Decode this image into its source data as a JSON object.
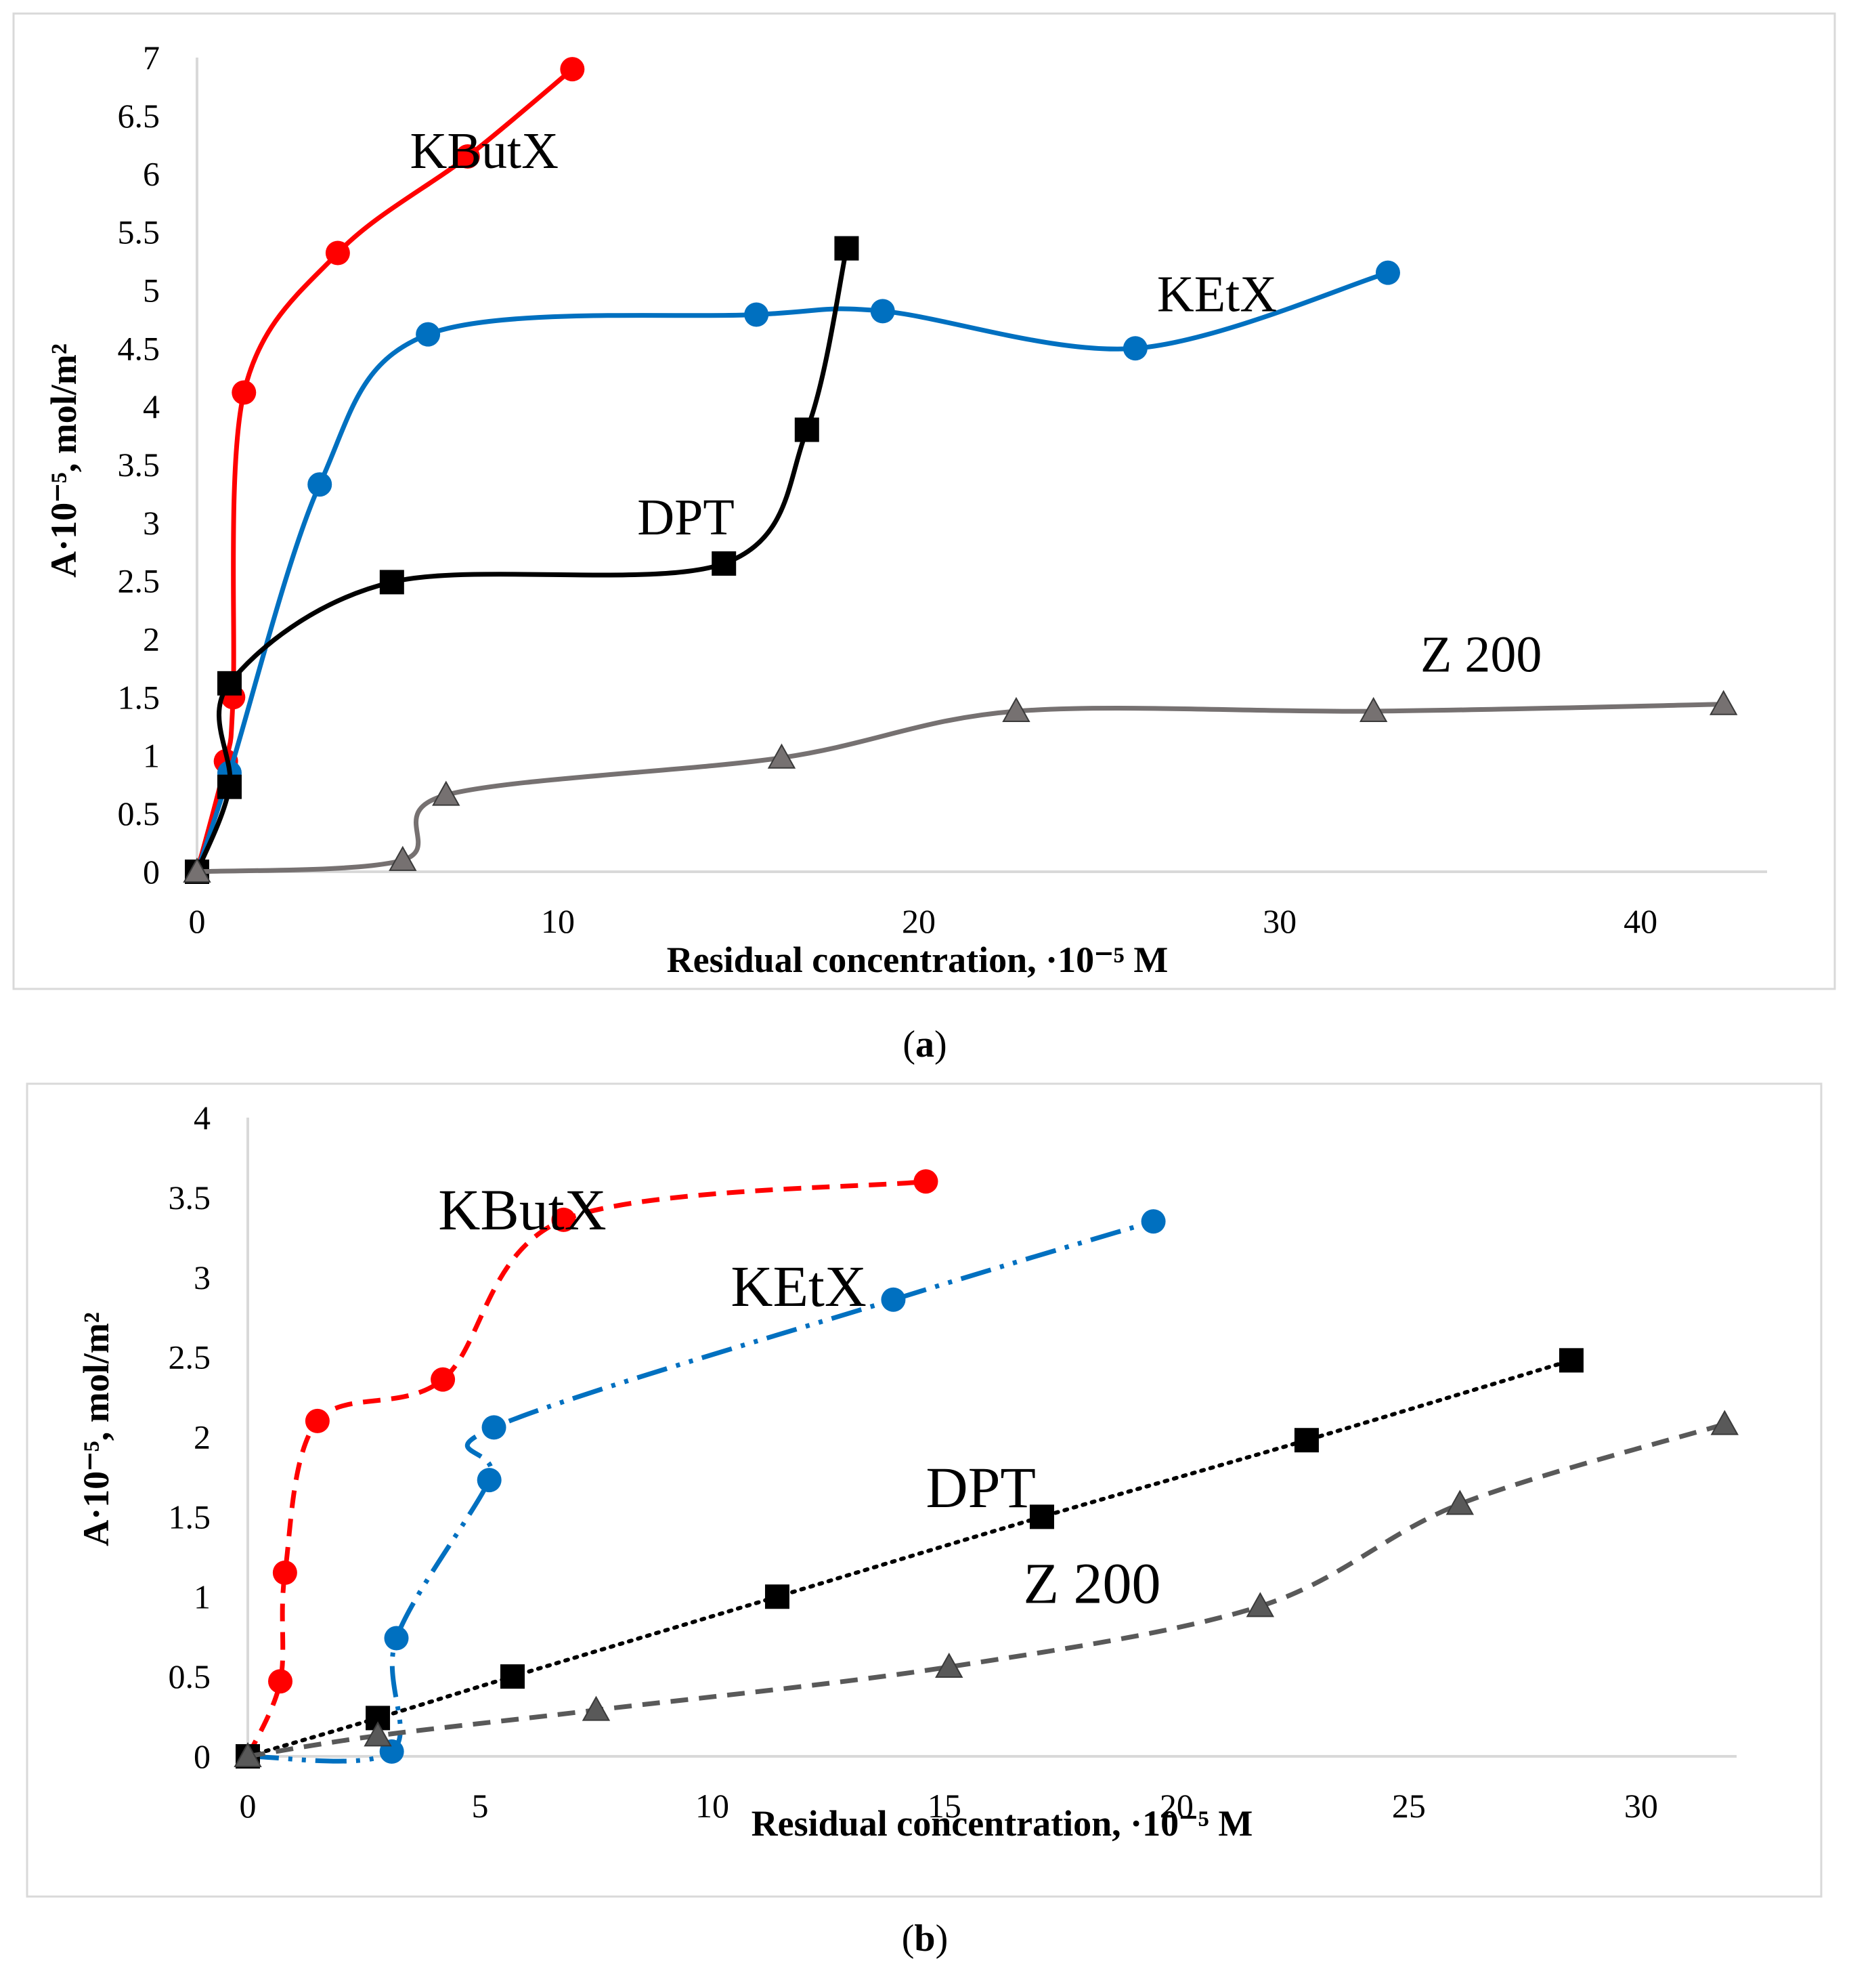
{
  "chart_data": [
    {
      "type": "line",
      "panel_label": "(a)",
      "caption_open": "(",
      "caption_letter": "a",
      "caption_close": ")",
      "xlabel": "Residual concentration, ·10⁻⁵ M",
      "ylabel": "A·10⁻⁵, mol/m²",
      "xlim": [
        0,
        43
      ],
      "ylim": [
        0,
        7
      ],
      "x_ticks": [
        "0",
        "10",
        "20",
        "30",
        "40"
      ],
      "x_tick_values": [
        0,
        10,
        20,
        30,
        40
      ],
      "y_ticks": [
        "0",
        "0.5",
        "1",
        "1.5",
        "2",
        "2.5",
        "3",
        "3.5",
        "4",
        "4.5",
        "5",
        "5.5",
        "6",
        "6.5",
        "7"
      ],
      "y_tick_values": [
        0,
        0.5,
        1,
        1.5,
        2,
        2.5,
        3,
        3.5,
        4,
        4.5,
        5,
        5.5,
        6,
        6.5,
        7
      ],
      "series": [
        {
          "name": "KButX",
          "color": "#ff0000",
          "marker": "circle",
          "line": "solid",
          "x": [
            0,
            0.8,
            1.0,
            1.3,
            3.9,
            7.5,
            10.4
          ],
          "y": [
            0,
            0.95,
            1.5,
            4.12,
            5.32,
            6.15,
            6.9
          ],
          "label_pos": [
            5.9,
            6.05
          ]
        },
        {
          "name": "KEtX",
          "color": "#0070c0",
          "marker": "circle",
          "line": "solid",
          "x": [
            0,
            0.9,
            3.4,
            6.4,
            15.5,
            19.0,
            26.0,
            33.0
          ],
          "y": [
            0,
            0.85,
            3.33,
            4.62,
            4.79,
            4.82,
            4.5,
            5.15
          ],
          "label_pos": [
            26.6,
            4.82
          ]
        },
        {
          "name": "DPT",
          "color": "#000000",
          "marker": "square",
          "line": "solid",
          "x": [
            0,
            0.9,
            0.9,
            5.4,
            14.6,
            16.9,
            18.0
          ],
          "y": [
            0,
            0.73,
            1.62,
            2.49,
            2.65,
            3.8,
            5.36
          ],
          "label_pos": [
            12.2,
            2.9
          ]
        },
        {
          "name": "Z 200",
          "color": "#767171",
          "marker": "triangle",
          "line": "solid",
          "x": [
            0,
            5.7,
            6.9,
            16.2,
            22.7,
            32.6,
            42.3
          ],
          "y": [
            0,
            0.1,
            0.66,
            0.98,
            1.38,
            1.38,
            1.44
          ],
          "label_pos": [
            33.9,
            1.72
          ]
        }
      ]
    },
    {
      "type": "line",
      "panel_label": "(b)",
      "caption_open": "(",
      "caption_letter": "b",
      "caption_close": ")",
      "xlabel": "Residual concentration, ·10⁻⁵ M",
      "ylabel": "A·10⁻⁵, mol/m²",
      "xlim": [
        0,
        32
      ],
      "ylim": [
        0,
        4
      ],
      "x_ticks": [
        "0",
        "5",
        "10",
        "15",
        "20",
        "25",
        "30"
      ],
      "x_tick_values": [
        0,
        5,
        10,
        15,
        20,
        25,
        30
      ],
      "y_ticks": [
        "0",
        "0.5",
        "1",
        "1.5",
        "2",
        "2.5",
        "3",
        "3.5",
        "4"
      ],
      "y_tick_values": [
        0,
        0.5,
        1,
        1.5,
        2,
        2.5,
        3,
        3.5,
        4
      ],
      "series": [
        {
          "name": "KButX",
          "color": "#ff0000",
          "marker": "circle",
          "line": "dashed",
          "x": [
            0,
            0.7,
            0.8,
            1.5,
            4.2,
            6.8,
            14.6
          ],
          "y": [
            0,
            0.47,
            1.15,
            2.1,
            2.36,
            3.36,
            3.6
          ],
          "label_pos": [
            4.1,
            3.3
          ]
        },
        {
          "name": "KEtX",
          "color": "#0070c0",
          "marker": "circle",
          "line": "dashdotdot",
          "x": [
            0,
            3.1,
            3.2,
            5.2,
            5.3,
            13.9,
            19.5
          ],
          "y": [
            0,
            0.03,
            0.74,
            1.73,
            2.06,
            2.86,
            3.35
          ],
          "label_pos": [
            10.4,
            2.82
          ]
        },
        {
          "name": "DPT",
          "color": "#000000",
          "marker": "square",
          "line": "dotted",
          "x": [
            0,
            2.8,
            5.7,
            11.4,
            17.1,
            22.8,
            28.5
          ],
          "y": [
            0,
            0.24,
            0.5,
            1.0,
            1.5,
            1.98,
            2.48
          ],
          "label_pos": [
            14.6,
            1.56
          ]
        },
        {
          "name": "Z 200",
          "color": "#595959",
          "marker": "triangle",
          "line": "dashed",
          "x": [
            0,
            2.8,
            7.5,
            15.1,
            21.8,
            26.1,
            31.8
          ],
          "y": [
            0,
            0.13,
            0.29,
            0.56,
            0.94,
            1.58,
            2.08
          ],
          "label_pos": [
            16.7,
            0.96
          ]
        }
      ]
    }
  ]
}
